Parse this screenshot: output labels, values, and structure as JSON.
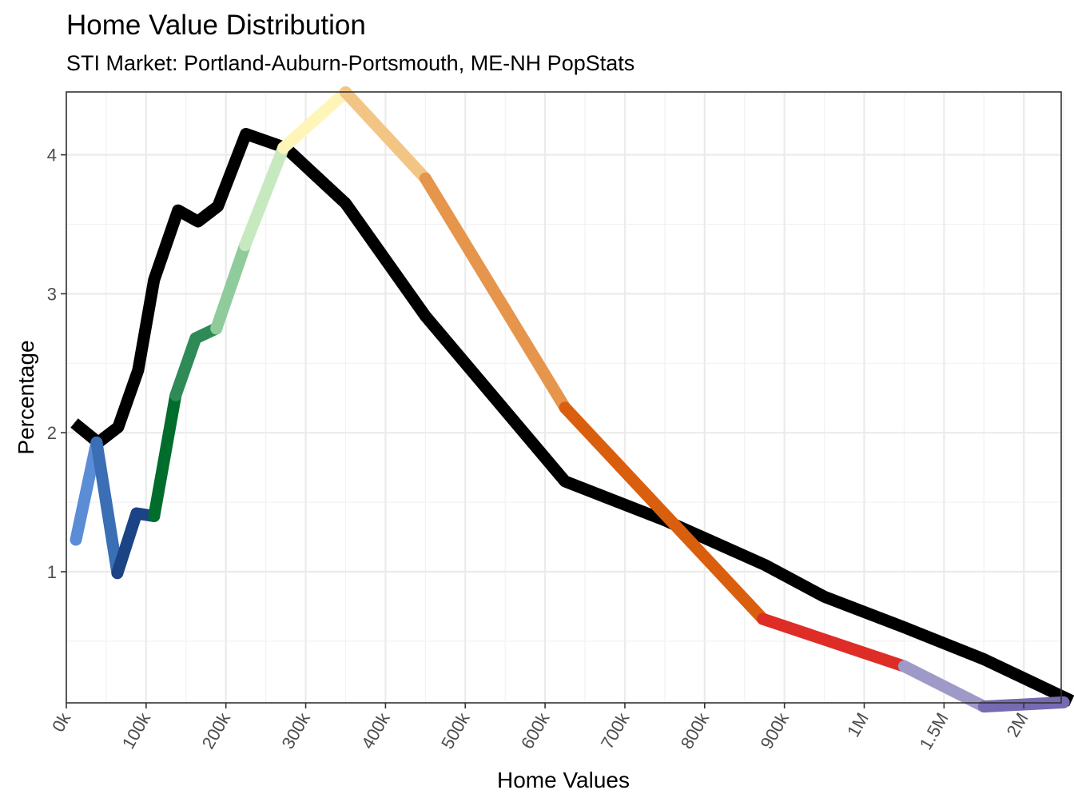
{
  "chart_data": {
    "type": "line",
    "title": "Home Value Distribution",
    "subtitle": "STI Market: Portland-Auburn-Portsmouth, ME-NH PopStats",
    "xlabel": "Home Values",
    "ylabel": "Percentage",
    "x_tick_labels": [
      "0k",
      "100k",
      "200k",
      "300k",
      "400k",
      "500k",
      "600k",
      "700k",
      "800k",
      "900k",
      "1M",
      "1.5M",
      "2M"
    ],
    "y_tick_labels": [
      "1",
      "2",
      "3",
      "4"
    ],
    "y_ticks": [
      1,
      2,
      3,
      4
    ],
    "ylim": [
      0.05,
      4.45
    ],
    "grid": true,
    "x_axis_note": "tick positions are index-based bins",
    "reference_line": {
      "color": "#000000",
      "x": [
        0.1,
        0.4,
        0.65,
        0.9,
        1.1,
        1.4,
        1.65,
        1.9,
        2.25,
        2.75,
        3.5,
        4.5,
        6.25,
        7.5,
        8.75,
        9.5,
        10.5,
        11.5,
        12.6
      ],
      "y": [
        2.07,
        1.93,
        2.04,
        2.45,
        3.1,
        3.6,
        3.52,
        3.63,
        4.15,
        4.05,
        3.65,
        2.84,
        1.65,
        1.37,
        1.05,
        0.82,
        0.6,
        0.37,
        0.07
      ]
    },
    "series_segments": [
      {
        "color": "#5B8DD6",
        "x": [
          0.12,
          0.38
        ],
        "y": [
          1.23,
          1.93
        ]
      },
      {
        "color": "#3A6EB5",
        "x": [
          0.38,
          0.64
        ],
        "y": [
          1.93,
          0.99
        ]
      },
      {
        "color": "#1C4385",
        "x": [
          0.64,
          0.88,
          1.1
        ],
        "y": [
          0.99,
          1.42,
          1.4
        ]
      },
      {
        "color": "#006D2C",
        "x": [
          1.1,
          1.37
        ],
        "y": [
          1.4,
          2.27
        ]
      },
      {
        "color": "#2E8B57",
        "x": [
          1.37,
          1.62,
          1.88
        ],
        "y": [
          2.27,
          2.68,
          2.75
        ]
      },
      {
        "color": "#8FCB9B",
        "x": [
          1.88,
          2.24
        ],
        "y": [
          2.75,
          3.35
        ]
      },
      {
        "color": "#C7E9C0",
        "x": [
          2.24,
          2.72
        ],
        "y": [
          3.35,
          4.05
        ]
      },
      {
        "color": "#FFF5B8",
        "x": [
          2.72,
          3.5
        ],
        "y": [
          4.05,
          4.45
        ]
      },
      {
        "color": "#F3C585",
        "x": [
          3.5,
          4.5
        ],
        "y": [
          4.45,
          3.83
        ]
      },
      {
        "color": "#E6954D",
        "x": [
          4.5,
          6.25
        ],
        "y": [
          3.83,
          2.18
        ]
      },
      {
        "color": "#D95F0E",
        "x": [
          6.25,
          8.73
        ],
        "y": [
          2.18,
          0.66
        ]
      },
      {
        "color": "#DE2D26",
        "x": [
          8.73,
          10.5
        ],
        "y": [
          0.66,
          0.32
        ]
      },
      {
        "color": "#9E9AC8",
        "x": [
          10.5,
          11.5
        ],
        "y": [
          0.32,
          0.03
        ]
      },
      {
        "color": "#756BB1",
        "x": [
          11.5,
          12.5
        ],
        "y": [
          0.03,
          0.06
        ]
      }
    ]
  }
}
